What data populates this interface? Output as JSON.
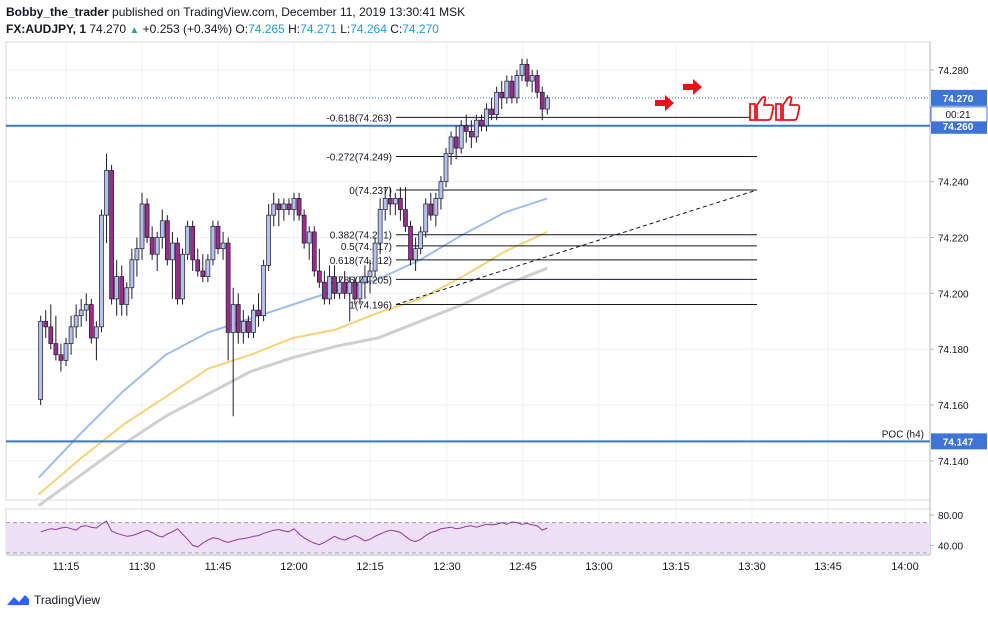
{
  "header": {
    "author": "Bobby_the_trader",
    "published_text": " published on TradingView.com, December 11, 2019 13:30:41 MSK",
    "symbol": "FX:AUDJPY, 1",
    "last": "74.270",
    "change": "+0.253 (+0.34%)",
    "o_label": "O:",
    "o_val": "74.265",
    "h_label": "H:",
    "h_val": "74.271",
    "l_label": "L:",
    "l_val": "74.264",
    "c_label": "C:",
    "c_val": "74.270"
  },
  "footer": {
    "brand": "TradingView"
  },
  "colors": {
    "bull_body": "#b8c1ec",
    "bear_body": "#9c2d8a",
    "wick": "#1a1a2e",
    "ma_fast": "#9fbde8",
    "ma_mid": "#f4d37a",
    "ma_slow": "#d0d0d0",
    "level_line": "#3d74d6",
    "price_tag": "#3d74d6",
    "rsi_line": "#8e3b9c",
    "rsi_fill": "#efe0f7",
    "arrow": "#e8101a"
  },
  "chart_data": [
    {
      "type": "candlestick",
      "interval": "1",
      "x_ticks": [
        "11:15",
        "11:30",
        "11:45",
        "12:00",
        "12:15",
        "12:30",
        "12:45",
        "13:00",
        "13:15",
        "13:30",
        "13:45",
        "14:00"
      ],
      "y_ticks": [
        "74.280",
        "74.260",
        "74.240",
        "74.220",
        "74.200",
        "74.180",
        "74.160",
        "74.140"
      ],
      "ylim": [
        74.126,
        74.29
      ],
      "candles": [
        [
          74.162,
          74.192,
          74.16,
          74.19
        ],
        [
          74.19,
          74.194,
          74.184,
          74.188
        ],
        [
          74.188,
          74.196,
          74.18,
          74.182
        ],
        [
          74.182,
          74.192,
          74.176,
          74.178
        ],
        [
          74.178,
          74.182,
          74.172,
          74.176
        ],
        [
          74.176,
          74.184,
          74.174,
          74.182
        ],
        [
          74.182,
          74.192,
          74.178,
          74.188
        ],
        [
          74.188,
          74.196,
          74.184,
          74.192
        ],
        [
          74.192,
          74.198,
          74.188,
          74.194
        ],
        [
          74.194,
          74.2,
          74.19,
          74.196
        ],
        [
          74.196,
          74.198,
          74.182,
          74.184
        ],
        [
          74.184,
          74.19,
          74.176,
          74.188
        ],
        [
          74.188,
          74.23,
          74.186,
          74.228
        ],
        [
          74.228,
          74.25,
          74.218,
          74.244
        ],
        [
          74.244,
          74.246,
          74.196,
          74.198
        ],
        [
          74.198,
          74.212,
          74.192,
          74.206
        ],
        [
          74.206,
          74.21,
          74.192,
          74.196
        ],
        [
          74.196,
          74.204,
          74.192,
          74.202
        ],
        [
          74.202,
          74.216,
          74.198,
          74.212
        ],
        [
          74.212,
          74.22,
          74.206,
          74.216
        ],
        [
          74.216,
          74.236,
          74.212,
          74.232
        ],
        [
          74.232,
          74.234,
          74.218,
          74.22
        ],
        [
          74.22,
          74.224,
          74.212,
          74.214
        ],
        [
          74.214,
          74.222,
          74.208,
          74.22
        ],
        [
          74.22,
          74.23,
          74.216,
          74.226
        ],
        [
          74.226,
          74.228,
          74.21,
          74.212
        ],
        [
          74.212,
          74.222,
          74.198,
          74.218
        ],
        [
          74.218,
          74.22,
          74.196,
          74.198
        ],
        [
          74.198,
          74.216,
          74.196,
          74.214
        ],
        [
          74.214,
          74.226,
          74.212,
          74.224
        ],
        [
          74.224,
          74.226,
          74.208,
          74.212
        ],
        [
          74.212,
          74.216,
          74.206,
          74.208
        ],
        [
          74.208,
          74.214,
          74.204,
          74.206
        ],
        [
          74.206,
          74.214,
          74.204,
          74.212
        ],
        [
          74.212,
          74.226,
          74.21,
          74.224
        ],
        [
          74.224,
          74.226,
          74.214,
          74.216
        ],
        [
          74.216,
          74.222,
          74.212,
          74.218
        ],
        [
          74.218,
          74.22,
          74.176,
          74.186
        ],
        [
          74.186,
          74.202,
          74.156,
          74.196
        ],
        [
          74.196,
          74.2,
          74.182,
          74.186
        ],
        [
          74.186,
          74.194,
          74.182,
          74.19
        ],
        [
          74.19,
          74.192,
          74.184,
          74.186
        ],
        [
          74.186,
          74.196,
          74.184,
          74.194
        ],
        [
          74.194,
          74.2,
          74.188,
          74.192
        ],
        [
          74.192,
          74.212,
          74.19,
          74.21
        ],
        [
          74.21,
          74.232,
          74.208,
          74.228
        ],
        [
          74.228,
          74.236,
          74.224,
          74.232
        ],
        [
          74.232,
          74.234,
          74.224,
          74.23
        ],
        [
          74.23,
          74.234,
          74.226,
          74.232
        ],
        [
          74.232,
          74.234,
          74.228,
          74.23
        ],
        [
          74.23,
          74.236,
          74.226,
          74.234
        ],
        [
          74.234,
          74.236,
          74.226,
          74.228
        ],
        [
          74.228,
          74.23,
          74.216,
          74.218
        ],
        [
          74.218,
          74.224,
          74.212,
          74.222
        ],
        [
          74.222,
          74.224,
          74.206,
          74.208
        ],
        [
          74.208,
          74.216,
          74.202,
          74.204
        ],
        [
          74.204,
          74.208,
          74.196,
          74.198
        ],
        [
          74.198,
          74.21,
          74.196,
          74.206
        ],
        [
          74.206,
          74.21,
          74.198,
          74.2
        ],
        [
          74.2,
          74.206,
          74.198,
          74.204
        ],
        [
          74.204,
          74.208,
          74.198,
          74.2
        ],
        [
          74.2,
          74.206,
          74.19,
          74.204
        ],
        [
          74.204,
          74.206,
          74.196,
          74.198
        ],
        [
          74.198,
          74.206,
          74.196,
          74.204
        ],
        [
          74.204,
          74.21,
          74.198,
          74.206
        ],
        [
          74.206,
          74.212,
          74.2,
          74.208
        ],
        [
          74.208,
          74.22,
          74.206,
          74.218
        ],
        [
          74.218,
          74.234,
          74.214,
          74.23
        ],
        [
          74.23,
          74.238,
          74.226,
          74.234
        ],
        [
          74.234,
          74.238,
          74.228,
          74.232
        ],
        [
          74.232,
          74.236,
          74.228,
          74.234
        ],
        [
          74.234,
          74.238,
          74.226,
          74.23
        ],
        [
          74.23,
          74.238,
          74.222,
          74.224
        ],
        [
          74.224,
          74.226,
          74.21,
          74.212
        ],
        [
          74.212,
          74.22,
          74.208,
          74.216
        ],
        [
          74.216,
          74.224,
          74.214,
          74.222
        ],
        [
          74.222,
          74.234,
          74.22,
          74.232
        ],
        [
          74.232,
          74.236,
          74.226,
          74.228
        ],
        [
          74.228,
          74.236,
          74.224,
          74.234
        ],
        [
          74.234,
          74.242,
          74.23,
          74.24
        ],
        [
          74.24,
          74.252,
          74.238,
          74.25
        ],
        [
          74.25,
          74.258,
          74.246,
          74.256
        ],
        [
          74.256,
          74.26,
          74.248,
          74.252
        ],
        [
          74.252,
          74.262,
          74.25,
          74.26
        ],
        [
          74.26,
          74.264,
          74.254,
          74.258
        ],
        [
          74.258,
          74.262,
          74.252,
          74.256
        ],
        [
          74.256,
          74.264,
          74.254,
          74.262
        ],
        [
          74.262,
          74.264,
          74.258,
          74.26
        ],
        [
          74.26,
          74.268,
          74.258,
          74.266
        ],
        [
          74.266,
          74.27,
          74.262,
          74.264
        ],
        [
          74.264,
          74.274,
          74.262,
          74.272
        ],
        [
          74.272,
          74.276,
          74.266,
          74.27
        ],
        [
          74.27,
          74.278,
          74.268,
          74.276
        ],
        [
          74.276,
          74.278,
          74.268,
          74.27
        ],
        [
          74.27,
          74.28,
          74.268,
          74.278
        ],
        [
          74.278,
          74.284,
          74.276,
          74.282
        ],
        [
          74.282,
          74.284,
          74.274,
          74.276
        ],
        [
          74.276,
          74.28,
          74.272,
          74.278
        ],
        [
          74.278,
          74.28,
          74.27,
          74.272
        ],
        [
          74.272,
          74.274,
          74.262,
          74.266
        ],
        [
          74.266,
          74.271,
          74.264,
          74.27
        ]
      ],
      "moving_averages": {
        "fast": [
          74.134,
          74.15,
          74.165,
          74.178,
          74.186,
          74.191,
          74.196,
          74.201,
          74.205,
          74.212,
          74.221,
          74.229,
          74.234
        ],
        "mid": [
          74.128,
          74.141,
          74.153,
          74.163,
          74.173,
          74.178,
          74.184,
          74.187,
          74.193,
          74.198,
          74.206,
          74.215,
          74.222
        ],
        "slow": [
          74.124,
          74.135,
          74.146,
          74.156,
          74.164,
          74.172,
          74.177,
          74.181,
          74.184,
          74.19,
          74.196,
          74.203,
          74.209
        ]
      },
      "fibonacci": [
        {
          "label": "-0.618(74.263)",
          "price": 74.263
        },
        {
          "label": "-0.272(74.249)",
          "price": 74.249
        },
        {
          "label": "0(74.237)",
          "price": 74.237
        },
        {
          "label": "0.382(74.221)",
          "price": 74.221
        },
        {
          "label": "0.5(74.217)",
          "price": 74.217
        },
        {
          "label": "0.618(74.212)",
          "price": 74.212
        },
        {
          "label": "0.786(74.205)",
          "price": 74.205
        },
        {
          "label": "1(74.196)",
          "price": 74.196
        }
      ],
      "horizontal_levels": [
        {
          "price": 74.26,
          "tag": "74.260"
        },
        {
          "price": 74.147,
          "tag": "74.147",
          "label": "POC (h4)"
        }
      ],
      "last_price": {
        "price": 74.27,
        "tag": "74.270",
        "countdown": "00:21"
      }
    },
    {
      "type": "line",
      "indicator": "RSI",
      "y_ticks": [
        "80.00",
        "40.00"
      ],
      "ylim": [
        30,
        88
      ],
      "upper": 70,
      "lower": 30,
      "values": [
        58,
        60,
        62,
        61,
        63,
        64,
        62,
        60,
        65,
        66,
        64,
        63,
        68,
        72,
        59,
        56,
        54,
        52,
        53,
        55,
        58,
        60,
        57,
        53,
        51,
        55,
        58,
        62,
        55,
        48,
        40,
        38,
        43,
        47,
        50,
        49,
        46,
        44,
        46,
        48,
        49,
        50,
        52,
        53,
        56,
        58,
        60,
        61,
        59,
        58,
        62,
        55,
        50,
        46,
        43,
        41,
        44,
        48,
        52,
        49,
        47,
        50,
        53,
        50,
        46,
        48,
        52,
        55,
        58,
        60,
        59,
        57,
        52,
        47,
        45,
        48,
        53,
        57,
        59,
        62,
        63,
        64,
        62,
        63,
        65,
        66,
        64,
        66,
        68,
        67,
        68,
        70,
        68,
        71,
        70,
        68,
        69,
        67,
        66,
        60,
        63
      ]
    }
  ]
}
